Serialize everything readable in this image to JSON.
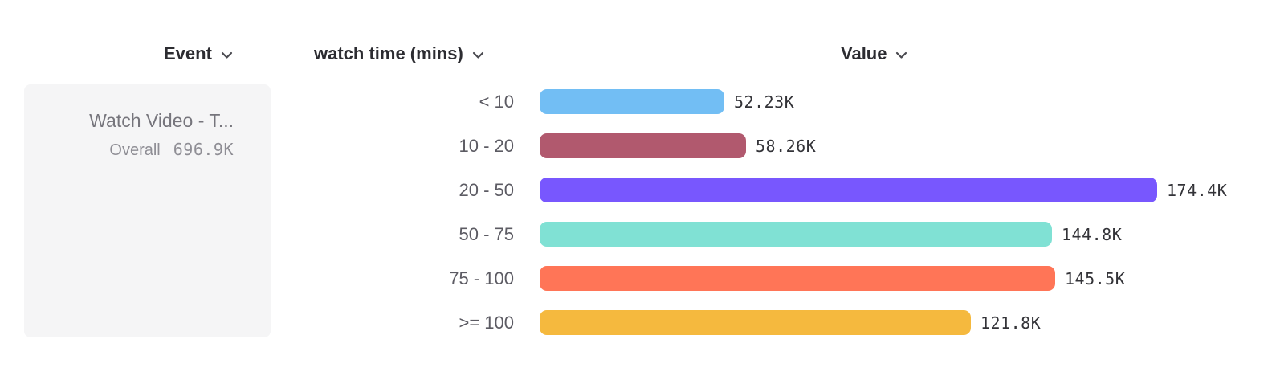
{
  "columns": {
    "event": {
      "label": "Event"
    },
    "breakdown": {
      "label": "watch time (mins)"
    },
    "value": {
      "label": "Value"
    }
  },
  "event_card": {
    "title": "Watch Video - T...",
    "overall_label": "Overall",
    "overall_value": "696.9K"
  },
  "chart_data": {
    "type": "bar",
    "orientation": "horizontal",
    "title": "",
    "xlabel": "Value",
    "ylabel": "watch time (mins)",
    "categories": [
      "< 10",
      "10 - 20",
      "20 - 50",
      "50 - 75",
      "75 - 100",
      ">= 100"
    ],
    "values": [
      52.23,
      58.26,
      174.4,
      144.8,
      145.5,
      121.8
    ],
    "value_labels": [
      "52.23K",
      "58.26K",
      "174.4K",
      "144.8K",
      "145.5K",
      "121.8K"
    ],
    "unit": "K",
    "xlim": [
      0,
      174.4
    ],
    "grid": false,
    "legend": "none",
    "colors": [
      "#72BEF4",
      "#B1596E",
      "#7857FE",
      "#80E1D4",
      "#FF7557",
      "#F5B93E"
    ]
  },
  "icons": {
    "chevron_down": "chevron-down"
  }
}
